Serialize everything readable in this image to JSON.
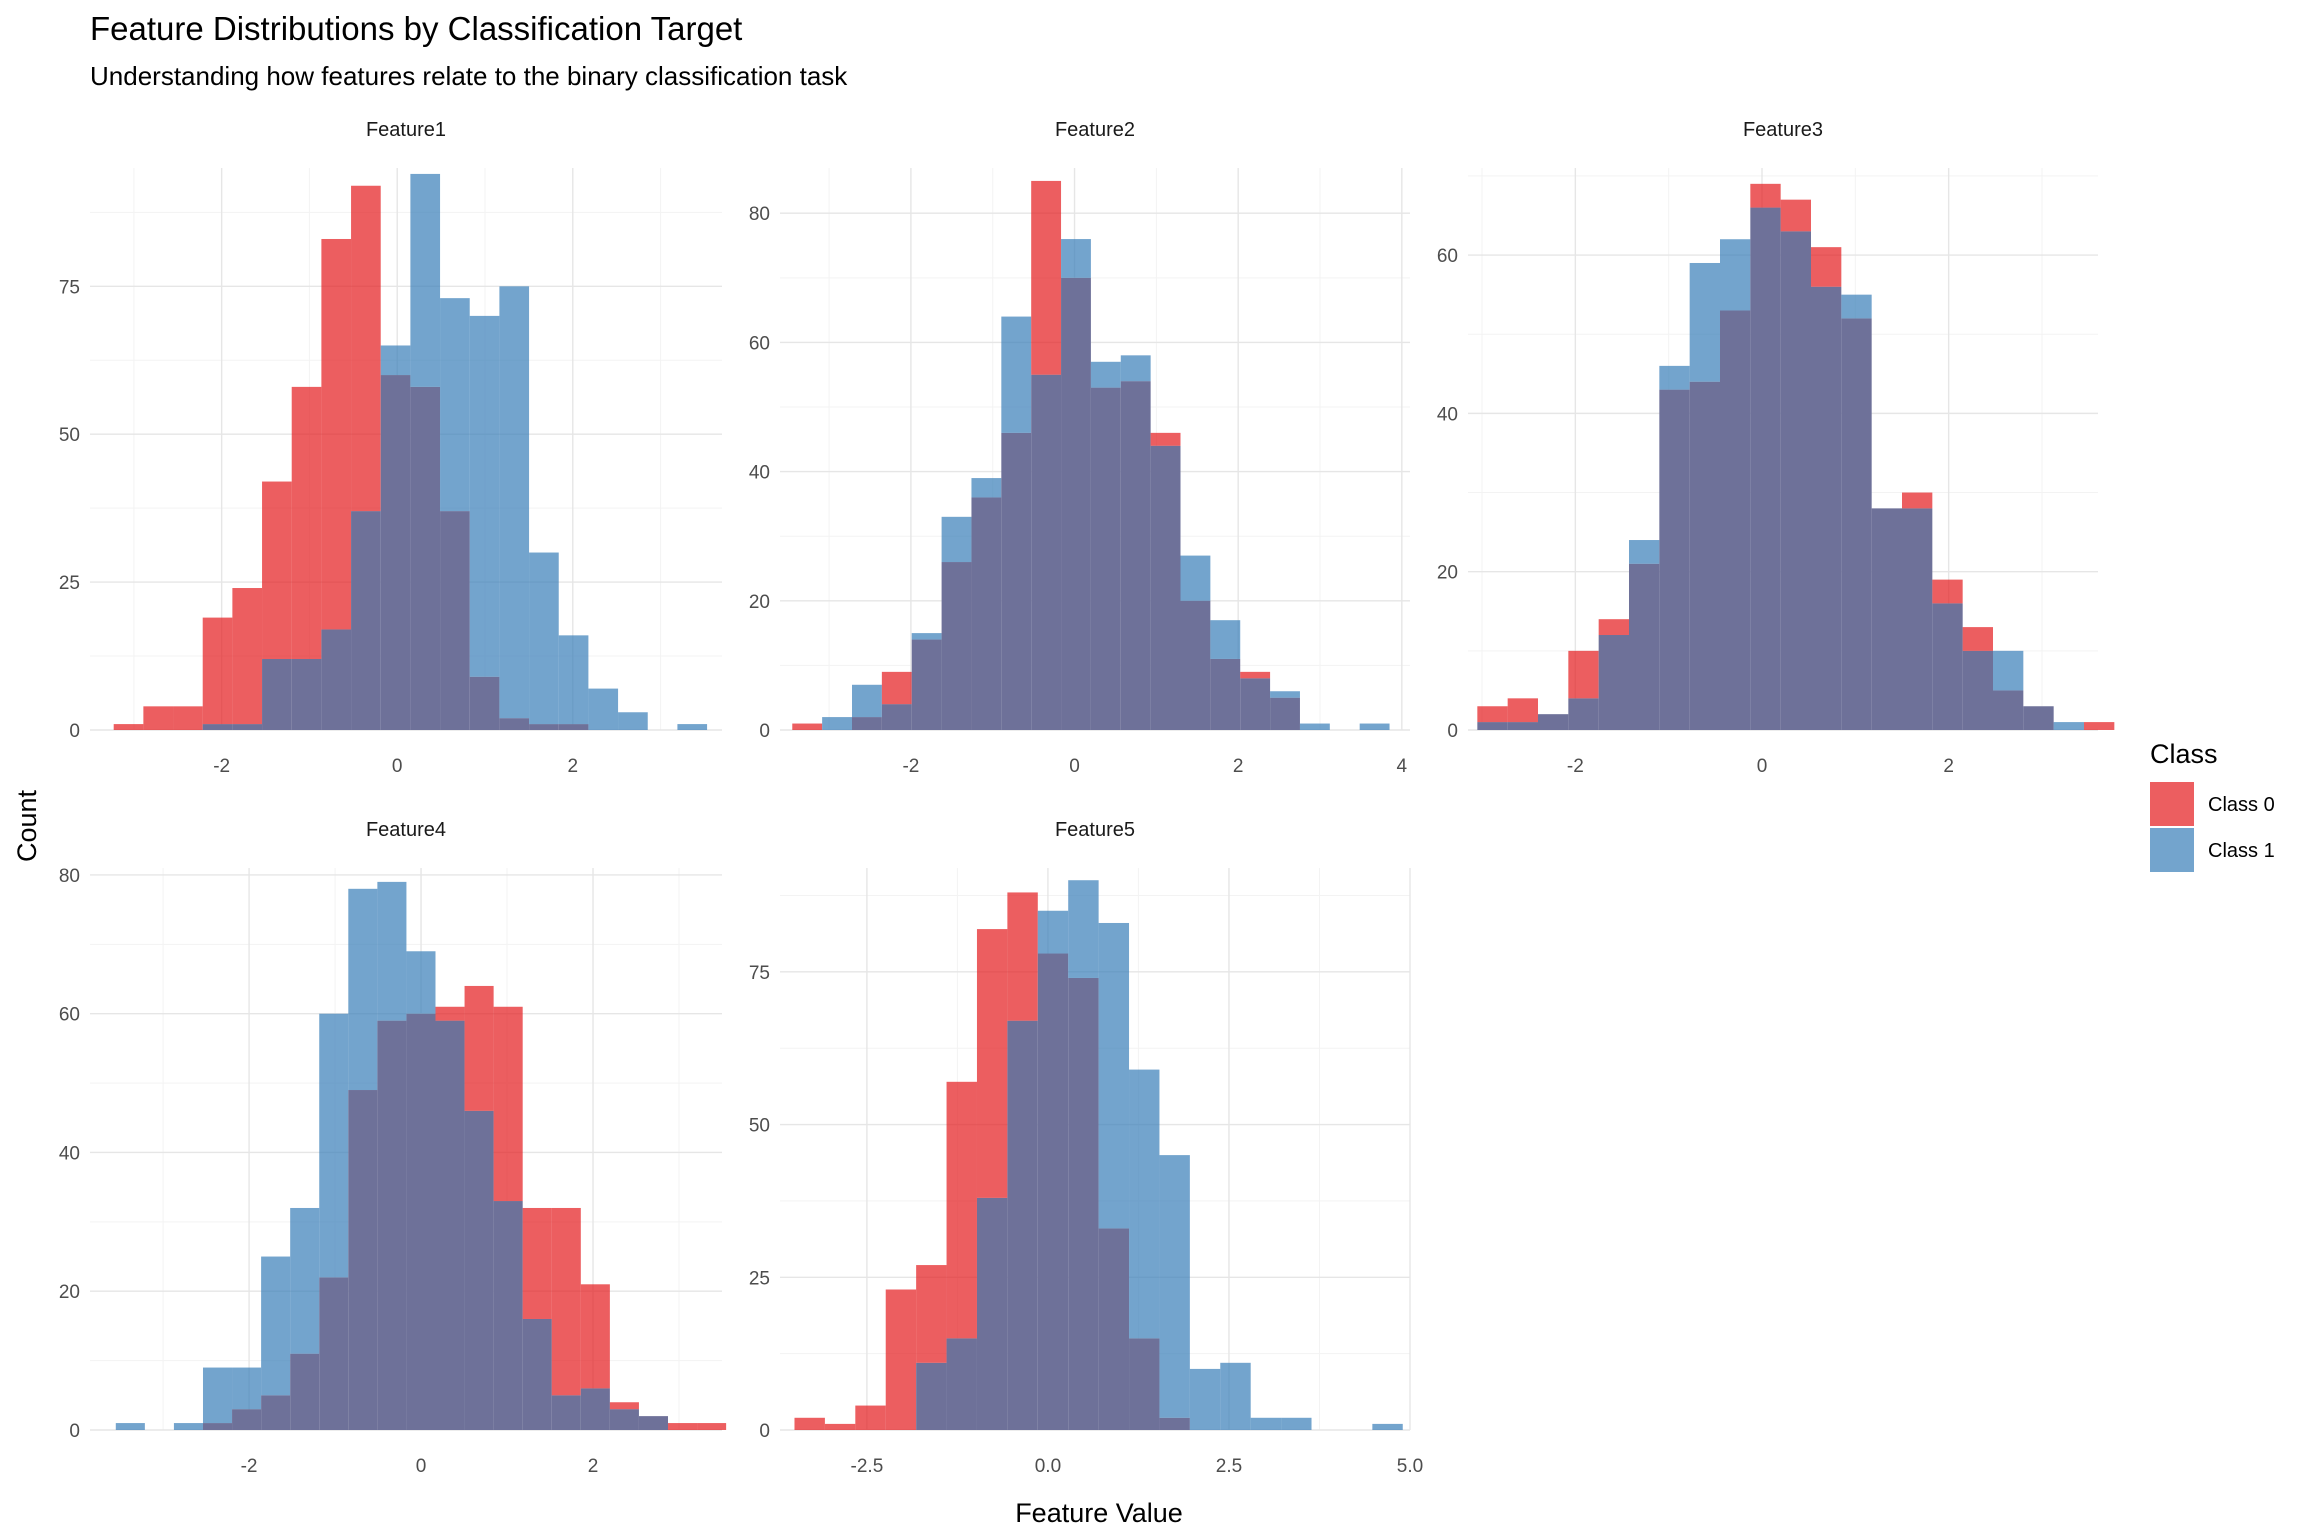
{
  "chart_data": {
    "type": "histogram",
    "title": "Feature Distributions by Classification Target",
    "subtitle": "Understanding how features relate to the binary classification task",
    "xlabel": "Feature Value",
    "ylabel": "Count",
    "grid": true,
    "legend": {
      "title": "Class",
      "position": "right",
      "entries": [
        {
          "label": "Class 0",
          "color": "#E41A1C"
        },
        {
          "label": "Class 1",
          "color": "#377EB8"
        }
      ]
    },
    "overlap_color": "#6E7199",
    "bar_alpha": 0.7,
    "panels": [
      {
        "name": "Feature1",
        "xlim": [
          -3.5,
          3.7
        ],
        "ylim": [
          0,
          95
        ],
        "x_ticks": [
          -2,
          0,
          2
        ],
        "x_tick_labels": [
          "-2",
          "0",
          "2"
        ],
        "y_ticks": [
          0,
          25,
          50,
          75
        ],
        "y_tick_labels": [
          "0",
          "25",
          "50",
          "75"
        ],
        "bin_start": -3.23,
        "bin_width": 0.338,
        "series": [
          {
            "name": "Class 0",
            "values": [
              1,
              4,
              4,
              19,
              24,
              42,
              58,
              83,
              92,
              60,
              58,
              37,
              9,
              2,
              1,
              1,
              0,
              0,
              0,
              0
            ]
          },
          {
            "name": "Class 1",
            "values": [
              0,
              0,
              0,
              1,
              1,
              12,
              12,
              17,
              37,
              65,
              94,
              73,
              70,
              75,
              30,
              16,
              7,
              3,
              0,
              1
            ]
          }
        ]
      },
      {
        "name": "Feature2",
        "xlim": [
          -3.6,
          4.1
        ],
        "ylim": [
          0,
          87
        ],
        "x_ticks": [
          -2,
          0,
          2,
          4
        ],
        "x_tick_labels": [
          "-2",
          "0",
          "2",
          "4"
        ],
        "y_ticks": [
          0,
          20,
          40,
          60,
          80
        ],
        "y_tick_labels": [
          "0",
          "20",
          "40",
          "60",
          "80"
        ],
        "bin_start": -3.45,
        "bin_width": 0.365,
        "series": [
          {
            "name": "Class 0",
            "values": [
              1,
              0,
              2,
              9,
              14,
              26,
              36,
              46,
              85,
              70,
              53,
              54,
              46,
              20,
              11,
              9,
              5,
              0,
              0,
              0,
              0
            ]
          },
          {
            "name": "Class 1",
            "values": [
              0,
              2,
              7,
              4,
              15,
              33,
              39,
              64,
              55,
              76,
              57,
              58,
              44,
              27,
              17,
              8,
              6,
              1,
              0,
              1,
              0
            ]
          }
        ]
      },
      {
        "name": "Feature3",
        "xlim": [
          -3.15,
          3.6
        ],
        "ylim": [
          0,
          71
        ],
        "x_ticks": [
          -2,
          0,
          2
        ],
        "x_tick_labels": [
          "-2",
          "0",
          "2"
        ],
        "y_ticks": [
          0,
          20,
          40,
          60
        ],
        "y_tick_labels": [
          "0",
          "20",
          "40",
          "60"
        ],
        "bin_start": -3.05,
        "bin_width": 0.325,
        "series": [
          {
            "name": "Class 0",
            "values": [
              3,
              4,
              2,
              10,
              14,
              21,
              43,
              44,
              53,
              69,
              67,
              61,
              52,
              28,
              30,
              19,
              13,
              5,
              3,
              0,
              1
            ]
          },
          {
            "name": "Class 1",
            "values": [
              1,
              1,
              2,
              4,
              12,
              24,
              46,
              59,
              62,
              66,
              63,
              56,
              55,
              28,
              28,
              16,
              10,
              10,
              3,
              1,
              0
            ]
          }
        ]
      },
      {
        "name": "Feature4",
        "xlim": [
          -3.85,
          3.5
        ],
        "ylim": [
          0,
          81
        ],
        "x_ticks": [
          -2,
          0,
          2
        ],
        "x_tick_labels": [
          "-2",
          "0",
          "2"
        ],
        "y_ticks": [
          0,
          20,
          40,
          60,
          80
        ],
        "y_tick_labels": [
          "0",
          "20",
          "40",
          "60",
          "80"
        ],
        "bin_start": -3.55,
        "bin_width": 0.338,
        "series": [
          {
            "name": "Class 0",
            "values": [
              0,
              0,
              0,
              1,
              3,
              5,
              11,
              22,
              49,
              59,
              60,
              61,
              64,
              61,
              32,
              32,
              21,
              4,
              2,
              1,
              1
            ]
          },
          {
            "name": "Class 1",
            "values": [
              1,
              0,
              1,
              9,
              9,
              25,
              32,
              60,
              78,
              79,
              69,
              59,
              46,
              33,
              16,
              5,
              6,
              3,
              2,
              0,
              0
            ]
          }
        ]
      },
      {
        "name": "Feature5",
        "xlim": [
          -3.7,
          5.0
        ],
        "ylim": [
          0,
          92
        ],
        "x_ticks": [
          -2.5,
          0,
          2.5,
          5
        ],
        "x_tick_labels": [
          "-2.5",
          "0.0",
          "2.5",
          "5.0"
        ],
        "y_ticks": [
          0,
          25,
          50,
          75
        ],
        "y_tick_labels": [
          "0",
          "25",
          "50",
          "75"
        ],
        "bin_start": -3.5,
        "bin_width": 0.42,
        "series": [
          {
            "name": "Class 0",
            "values": [
              2,
              1,
              4,
              23,
              27,
              57,
              82,
              88,
              78,
              74,
              33,
              15,
              2,
              0,
              0,
              0,
              0,
              0,
              0,
              0,
              0
            ]
          },
          {
            "name": "Class 1",
            "values": [
              0,
              0,
              0,
              0,
              11,
              15,
              38,
              67,
              85,
              90,
              83,
              59,
              45,
              10,
              11,
              2,
              2,
              0,
              0,
              1,
              0
            ]
          }
        ]
      }
    ]
  }
}
